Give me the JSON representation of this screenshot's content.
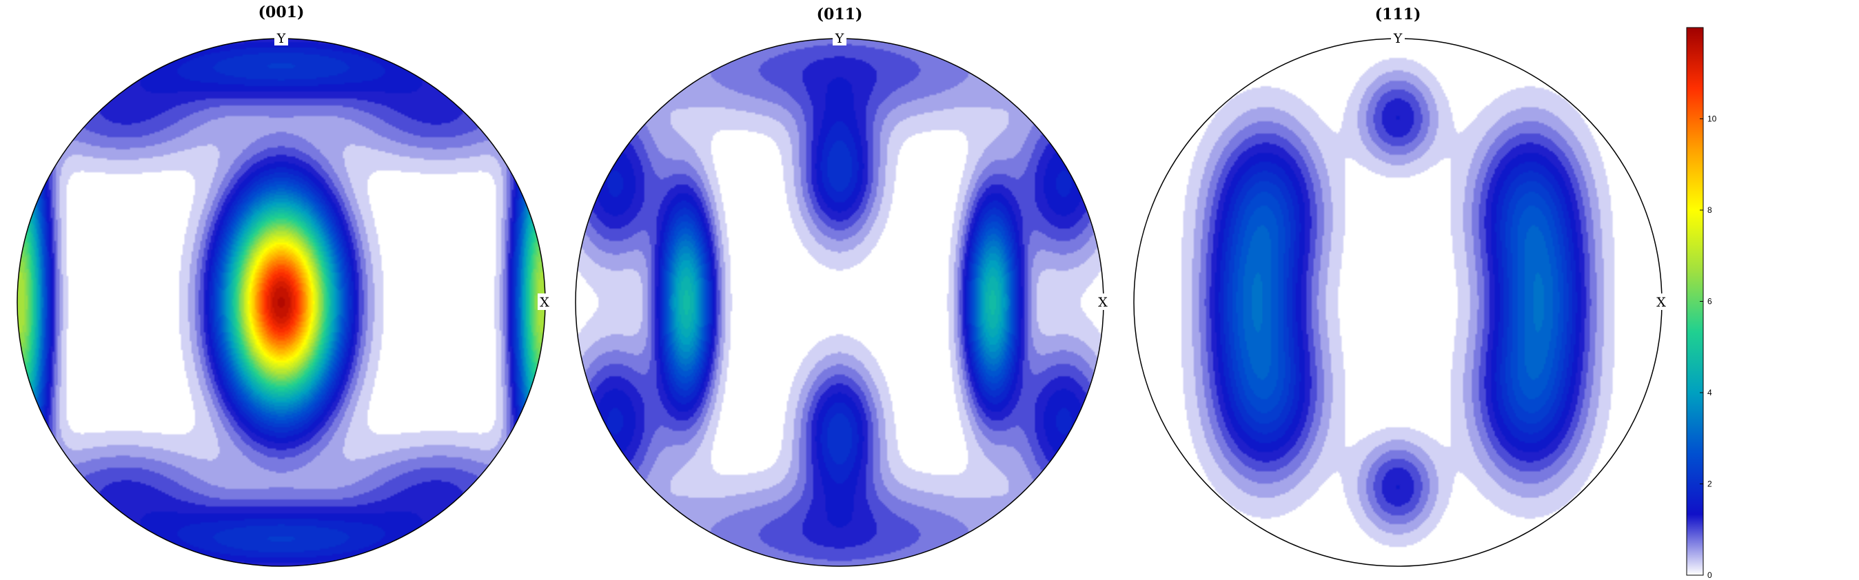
{
  "chart_data": {
    "type": "heatmap",
    "subtype": "pole-figure",
    "panels": [
      {
        "title": "(001)",
        "axis_labels": {
          "top": "Y",
          "right": "X"
        },
        "peaks": [
          {
            "x": 0.0,
            "y": 0.0,
            "sx": 0.14,
            "sy": 0.26,
            "value": 11.8
          },
          {
            "x": -0.99,
            "y": 0.0,
            "sx": 0.07,
            "sy": 0.45,
            "value": 7.0
          },
          {
            "x": 0.99,
            "y": 0.0,
            "sx": 0.07,
            "sy": 0.45,
            "value": 7.0
          },
          {
            "x": 0.0,
            "y": 0.9,
            "sx": 0.45,
            "sy": 0.1,
            "value": 2.2
          },
          {
            "x": 0.0,
            "y": -0.9,
            "sx": 0.45,
            "sy": 0.1,
            "value": 2.2
          },
          {
            "x": -0.6,
            "y": 0.7,
            "sx": 0.25,
            "sy": 0.12,
            "value": 1.2
          },
          {
            "x": 0.6,
            "y": 0.7,
            "sx": 0.25,
            "sy": 0.12,
            "value": 1.2
          },
          {
            "x": -0.6,
            "y": -0.7,
            "sx": 0.25,
            "sy": 0.12,
            "value": 1.2
          },
          {
            "x": 0.6,
            "y": -0.7,
            "sx": 0.25,
            "sy": 0.12,
            "value": 1.2
          }
        ]
      },
      {
        "title": "(011)",
        "axis_labels": {
          "top": "Y",
          "right": "X"
        },
        "peaks": [
          {
            "x": -0.58,
            "y": 0.0,
            "sx": 0.07,
            "sy": 0.26,
            "value": 4.8
          },
          {
            "x": 0.58,
            "y": 0.0,
            "sx": 0.07,
            "sy": 0.26,
            "value": 4.8
          },
          {
            "x": 0.0,
            "y": 0.5,
            "sx": 0.1,
            "sy": 0.18,
            "value": 2.2
          },
          {
            "x": 0.0,
            "y": -0.5,
            "sx": 0.1,
            "sy": 0.18,
            "value": 2.2
          },
          {
            "x": -0.85,
            "y": 0.45,
            "sx": 0.12,
            "sy": 0.2,
            "value": 1.8
          },
          {
            "x": 0.85,
            "y": 0.45,
            "sx": 0.12,
            "sy": 0.2,
            "value": 1.8
          },
          {
            "x": -0.85,
            "y": -0.45,
            "sx": 0.12,
            "sy": 0.2,
            "value": 1.8
          },
          {
            "x": 0.85,
            "y": -0.45,
            "sx": 0.12,
            "sy": 0.2,
            "value": 1.8
          },
          {
            "x": 0.0,
            "y": 0.88,
            "sx": 0.5,
            "sy": 0.14,
            "value": 1.2
          },
          {
            "x": 0.0,
            "y": -0.88,
            "sx": 0.5,
            "sy": 0.14,
            "value": 1.2
          }
        ]
      },
      {
        "title": "(111)",
        "axis_labels": {
          "top": "Y",
          "right": "X"
        },
        "peaks": [
          {
            "x": -0.5,
            "y": 0.35,
            "sx": 0.14,
            "sy": 0.22,
            "value": 2.4
          },
          {
            "x": 0.5,
            "y": 0.35,
            "sx": 0.14,
            "sy": 0.22,
            "value": 2.4
          },
          {
            "x": -0.5,
            "y": -0.35,
            "sx": 0.14,
            "sy": 0.22,
            "value": 2.4
          },
          {
            "x": 0.5,
            "y": -0.35,
            "sx": 0.14,
            "sy": 0.22,
            "value": 2.4
          },
          {
            "x": -0.55,
            "y": 0.0,
            "sx": 0.12,
            "sy": 0.2,
            "value": 2.0
          },
          {
            "x": 0.55,
            "y": 0.0,
            "sx": 0.12,
            "sy": 0.2,
            "value": 2.0
          },
          {
            "x": 0.0,
            "y": 0.7,
            "sx": 0.1,
            "sy": 0.12,
            "value": 1.5
          },
          {
            "x": 0.0,
            "y": -0.7,
            "sx": 0.1,
            "sy": 0.12,
            "value": 1.5
          }
        ]
      }
    ],
    "colorbar": {
      "range": [
        0,
        12
      ],
      "ticks": [
        "0",
        "2",
        "4",
        "6",
        "8",
        "10"
      ],
      "colormap": [
        "#ffffff",
        "#1010c8",
        "#0050d0",
        "#00a0c0",
        "#20d090",
        "#a0e040",
        "#ffff00",
        "#ffa000",
        "#ff3000",
        "#a00000"
      ]
    }
  }
}
